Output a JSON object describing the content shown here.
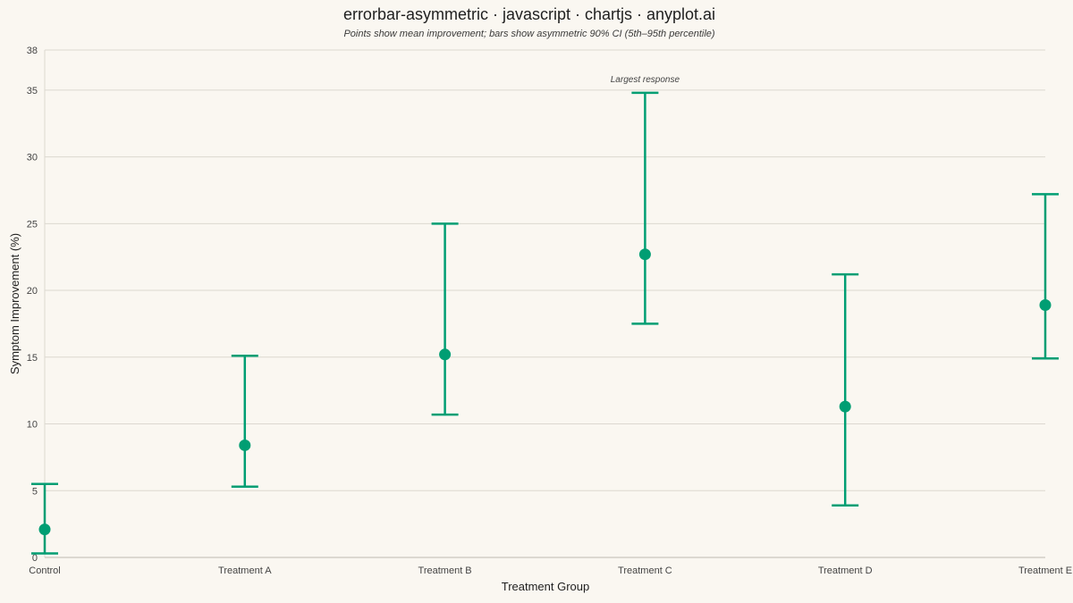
{
  "chart_data": {
    "type": "scatter",
    "title": "errorbar-asymmetric · javascript · chartjs · anyplot.ai",
    "subtitle": "Points show mean improvement; bars show asymmetric 90% CI (5th–95th percentile)",
    "xlabel": "Treatment Group",
    "ylabel": "Symptom Improvement (%)",
    "ylim": [
      0,
      38
    ],
    "yticks": [
      0,
      5,
      10,
      15,
      20,
      25,
      30,
      35,
      38
    ],
    "grid": true,
    "categories": [
      "Control",
      "Treatment A",
      "Treatment B",
      "Treatment C",
      "Treatment D",
      "Treatment E"
    ],
    "series": [
      {
        "values": [
          2.1,
          8.4,
          15.2,
          22.7,
          11.3,
          18.9
        ],
        "lower": [
          0.3,
          5.3,
          10.7,
          17.5,
          3.9,
          14.9
        ],
        "upper": [
          5.5,
          15.1,
          25.0,
          34.8,
          21.2,
          27.2
        ]
      }
    ],
    "annotations": [
      {
        "category": "Treatment C",
        "text": "Largest response"
      }
    ],
    "colors": {
      "series": "#009E73",
      "background": "#FAF7F1",
      "grid": "#dcd8d0"
    }
  }
}
